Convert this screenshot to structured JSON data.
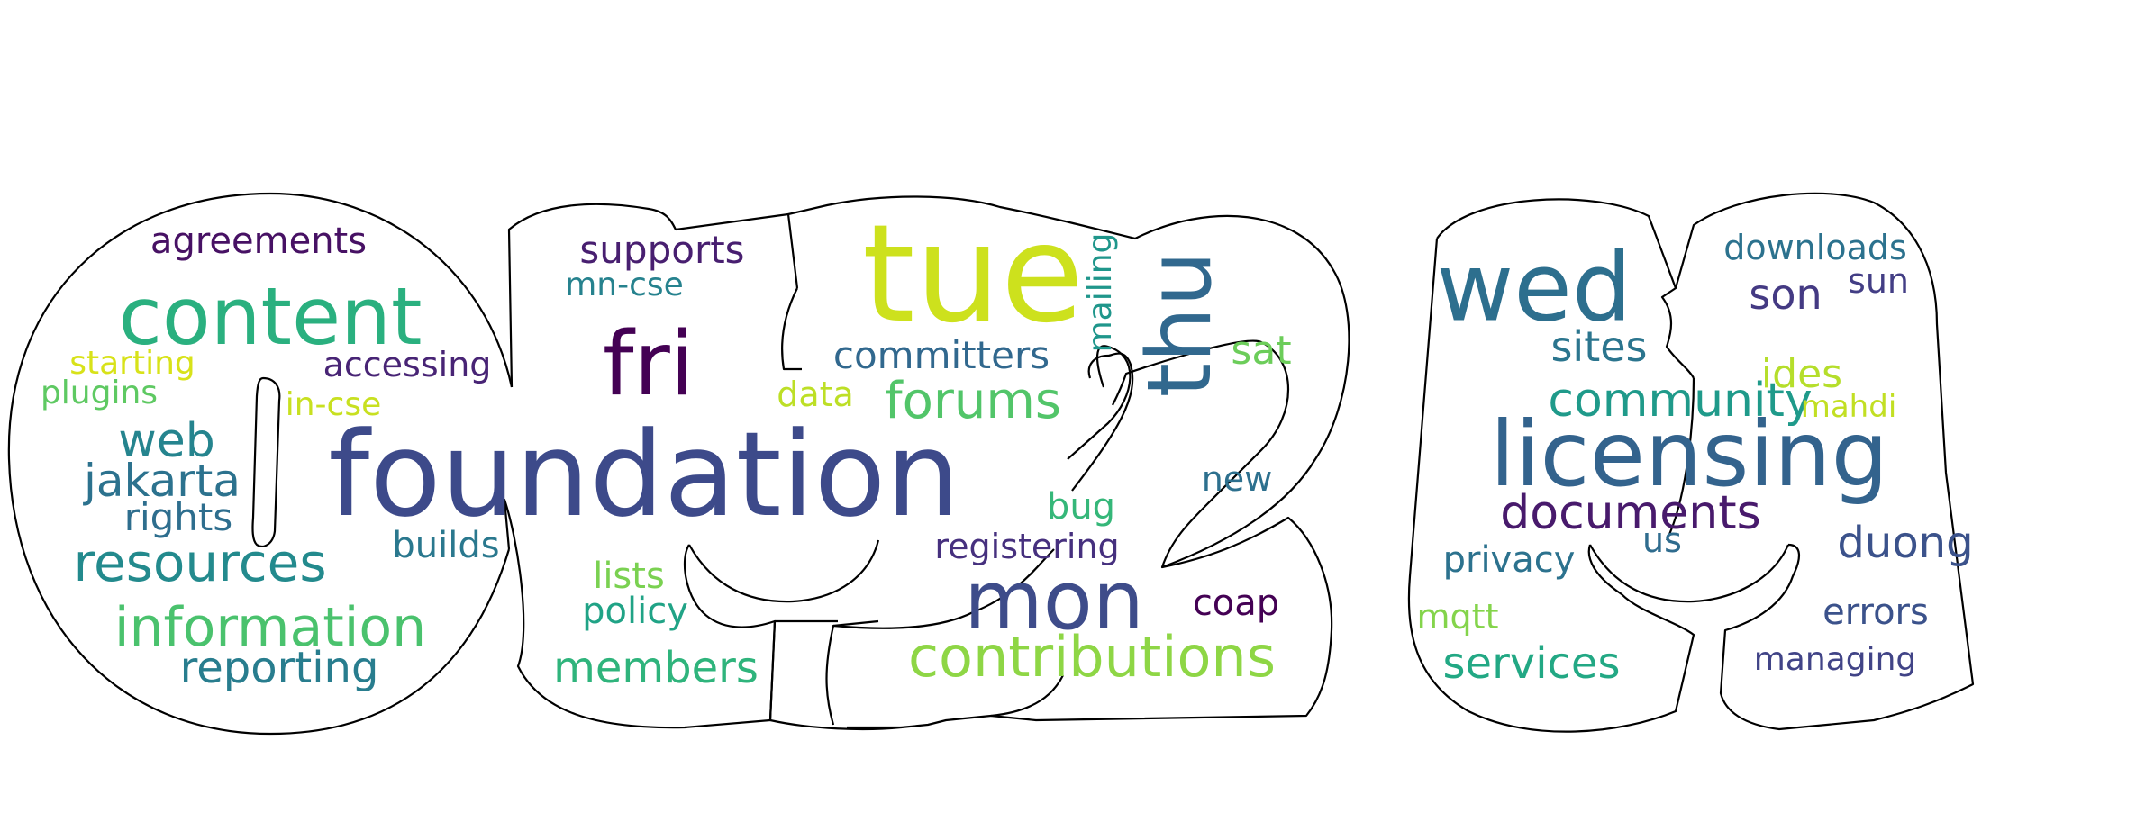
{
  "word_cloud": {
    "words": [
      {
        "text": "foundation",
        "color": "#3d4a8a"
      },
      {
        "text": "tue",
        "color": "#cde11d"
      },
      {
        "text": "licensing",
        "color": "#33638d"
      },
      {
        "text": "content",
        "color": "#2ab07f"
      },
      {
        "text": "wed",
        "color": "#2d6f8e"
      },
      {
        "text": "fri",
        "color": "#440154"
      },
      {
        "text": "mon",
        "color": "#3e4c8a"
      },
      {
        "text": "thu",
        "color": "#31688e"
      },
      {
        "text": "contributions",
        "color": "#8ed645"
      },
      {
        "text": "information",
        "color": "#4ac26d"
      },
      {
        "text": "resources",
        "color": "#238a8d"
      },
      {
        "text": "documents",
        "color": "#481a6c"
      },
      {
        "text": "forums",
        "color": "#52c569"
      },
      {
        "text": "community",
        "color": "#1f9a8a"
      },
      {
        "text": "members",
        "color": "#2fb47c"
      },
      {
        "text": "web",
        "color": "#25848e"
      },
      {
        "text": "jakarta",
        "color": "#2c728e"
      },
      {
        "text": "reporting",
        "color": "#287d8e"
      },
      {
        "text": "services",
        "color": "#22a884"
      },
      {
        "text": "duong",
        "color": "#3b528b"
      },
      {
        "text": "sites",
        "color": "#2b758e"
      },
      {
        "text": "committers",
        "color": "#31688e"
      },
      {
        "text": "supports",
        "color": "#481f70"
      },
      {
        "text": "son",
        "color": "#443a83"
      },
      {
        "text": "rights",
        "color": "#2e6e8e"
      },
      {
        "text": "ides",
        "color": "#b5de2b"
      },
      {
        "text": "agreements",
        "color": "#471164"
      },
      {
        "text": "sat",
        "color": "#6ccd5a"
      },
      {
        "text": "registering",
        "color": "#46307e"
      },
      {
        "text": "accessing",
        "color": "#482475"
      },
      {
        "text": "errors",
        "color": "#3b528b"
      },
      {
        "text": "bug",
        "color": "#35b779"
      },
      {
        "text": "builds",
        "color": "#2a788e"
      },
      {
        "text": "privacy",
        "color": "#2c728e"
      },
      {
        "text": "coap",
        "color": "#440154"
      },
      {
        "text": "lists",
        "color": "#7ad151"
      },
      {
        "text": "policy",
        "color": "#20a386"
      },
      {
        "text": "mn-cse",
        "color": "#26828e"
      },
      {
        "text": "downloads",
        "color": "#2c728e"
      },
      {
        "text": "new",
        "color": "#2d708e"
      },
      {
        "text": "starting",
        "color": "#d8e219"
      },
      {
        "text": "plugins",
        "color": "#5ec962"
      },
      {
        "text": "mqtt",
        "color": "#84d44b"
      },
      {
        "text": "managing",
        "color": "#414487"
      },
      {
        "text": "us",
        "color": "#2f6c8e"
      },
      {
        "text": "sun",
        "color": "#433e85"
      },
      {
        "text": "in-cse",
        "color": "#c8e020"
      },
      {
        "text": "data",
        "color": "#bddf26"
      },
      {
        "text": "mahdi",
        "color": "#c2df23"
      },
      {
        "text": "mailing",
        "color": "#1f968b"
      }
    ]
  }
}
